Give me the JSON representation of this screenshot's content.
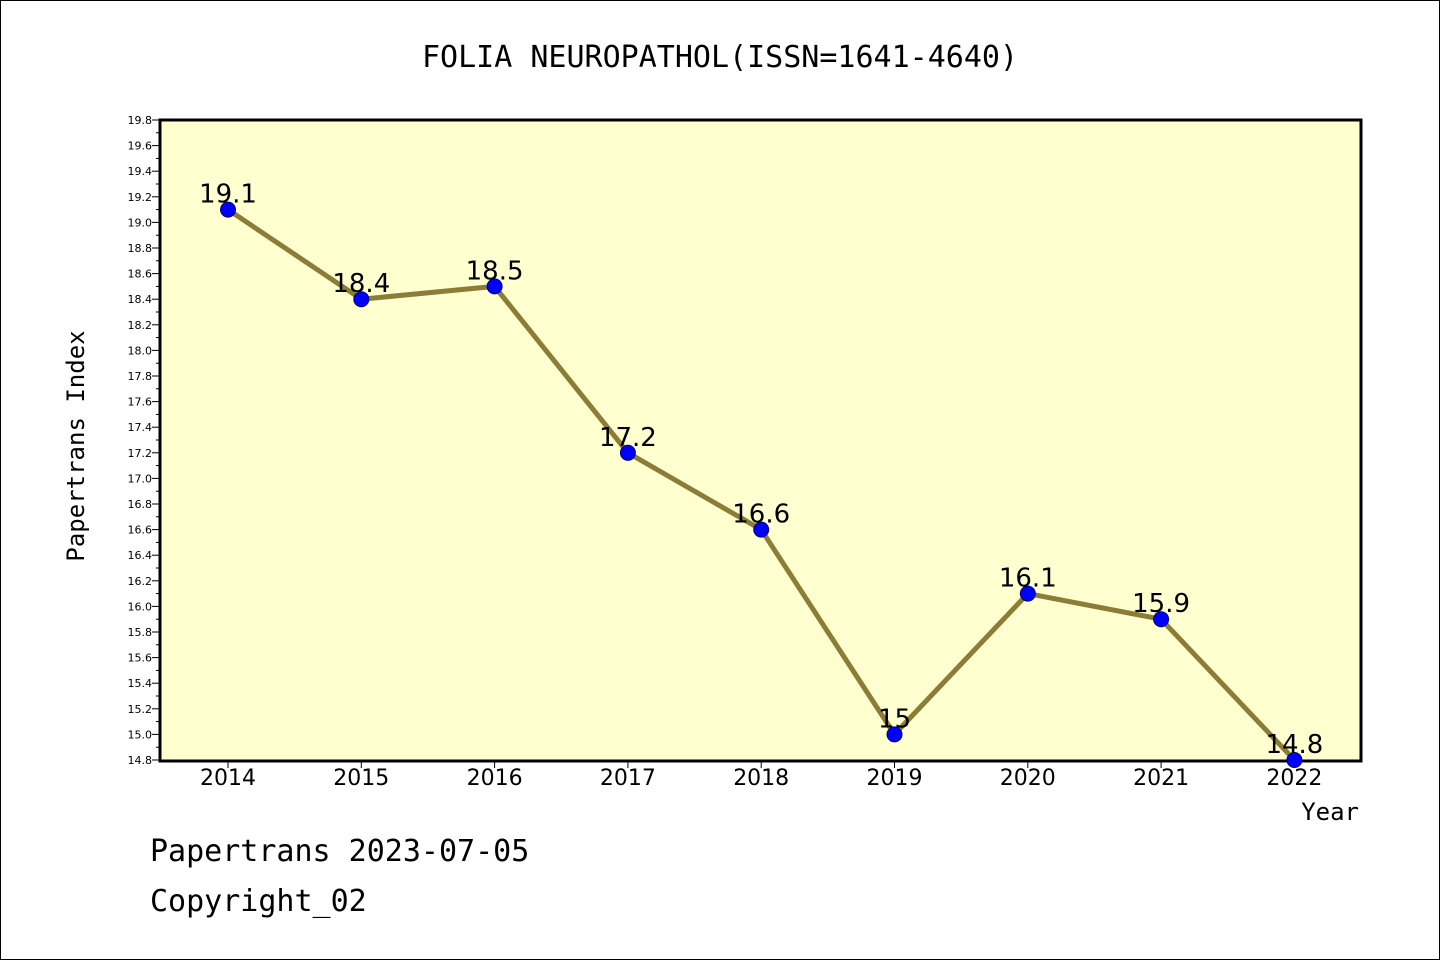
{
  "footer": {
    "line1": "Papertrans 2023-07-05",
    "line2": "Copyright_02"
  },
  "chart_data": {
    "type": "line",
    "title": "FOLIA NEUROPATHOL(ISSN=1641-4640)",
    "xlabel": "Year",
    "ylabel": "Papertrans Index",
    "categories": [
      "2014",
      "2015",
      "2016",
      "2017",
      "2018",
      "2019",
      "2020",
      "2021",
      "2022"
    ],
    "series": [
      {
        "values": [
          19.1,
          18.4,
          18.5,
          17.2,
          16.6,
          15,
          16.1,
          15.9,
          14.8
        ],
        "labels": [
          "19.1",
          "18.4",
          "18.5",
          "17.2",
          "16.6",
          "15",
          "16.1",
          "15.9",
          "14.8"
        ]
      }
    ],
    "ylim": [
      14.8,
      19.8
    ],
    "yticks": [
      "14.8",
      "15.0",
      "15.2",
      "15.4",
      "15.6",
      "15.8",
      "16.0",
      "16.2",
      "16.4",
      "16.6",
      "16.8",
      "17.0",
      "17.2",
      "17.4",
      "17.6",
      "17.8",
      "18.0",
      "18.2",
      "18.4",
      "18.6",
      "18.8",
      "19.0",
      "19.2",
      "19.4",
      "19.6",
      "19.8"
    ],
    "grid": false,
    "colors": {
      "plot_background": "#ffffd0",
      "line": "#8b7d35",
      "marker": "#0000ff",
      "marker_edge": "#000080"
    }
  }
}
